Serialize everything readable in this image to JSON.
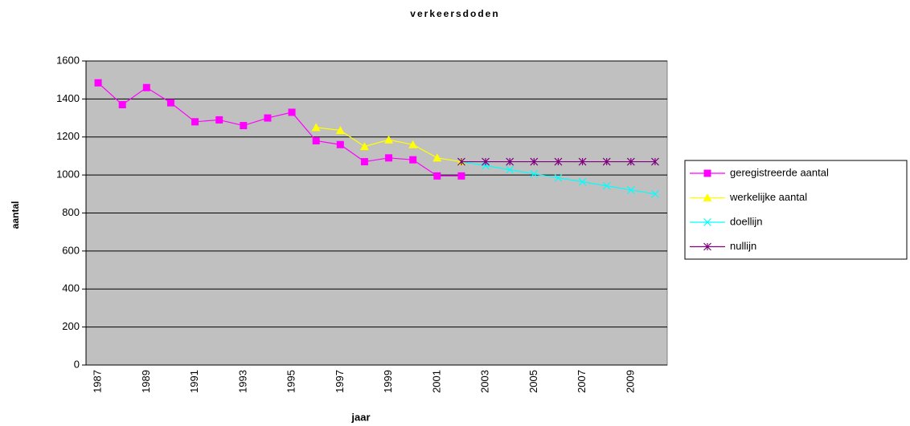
{
  "chart_data": {
    "type": "line",
    "title": "verkeersdoden",
    "x_label": "jaar",
    "y_label": "aantal",
    "categories": [
      1987,
      null,
      1989,
      null,
      1991,
      null,
      1993,
      null,
      1995,
      null,
      1997,
      null,
      1999,
      null,
      2001,
      null,
      2003,
      null,
      2005,
      null,
      2007,
      null,
      2009,
      null
    ],
    "series": [
      {
        "name": "geregistreerde aantal",
        "color": "#ff00ff",
        "marker": "square",
        "values": [
          1485,
          1370,
          1460,
          1380,
          1280,
          1290,
          1260,
          1300,
          1330,
          1180,
          1160,
          1070,
          1090,
          1080,
          995,
          995,
          null,
          null,
          null,
          null,
          null,
          null,
          null,
          null
        ]
      },
      {
        "name": "werkelijke aantal",
        "color": "#ffff00",
        "marker": "triangle",
        "values": [
          null,
          null,
          null,
          null,
          null,
          null,
          null,
          null,
          null,
          1250,
          1235,
          1150,
          1185,
          1160,
          1090,
          1070,
          null,
          null,
          null,
          null,
          null,
          null,
          null,
          null
        ]
      },
      {
        "name": "doellijn",
        "color": "#00ffff",
        "marker": "x",
        "values": [
          null,
          null,
          null,
          null,
          null,
          null,
          null,
          null,
          null,
          null,
          null,
          null,
          null,
          null,
          null,
          1070,
          1049,
          1028,
          1006,
          985,
          964,
          943,
          921,
          900
        ]
      },
      {
        "name": "nullijn",
        "color": "#800080",
        "marker": "star",
        "values": [
          null,
          null,
          null,
          null,
          null,
          null,
          null,
          null,
          null,
          null,
          null,
          null,
          null,
          null,
          null,
          1070,
          1070,
          1070,
          1070,
          1070,
          1070,
          1070,
          1070,
          1070
        ]
      }
    ],
    "ylim": [
      0,
      1600
    ],
    "yticks": [
      0,
      200,
      400,
      600,
      800,
      1000,
      1200,
      1400,
      1600
    ],
    "grid": true,
    "plot_background": "#c0c0c0",
    "legend": "right"
  }
}
